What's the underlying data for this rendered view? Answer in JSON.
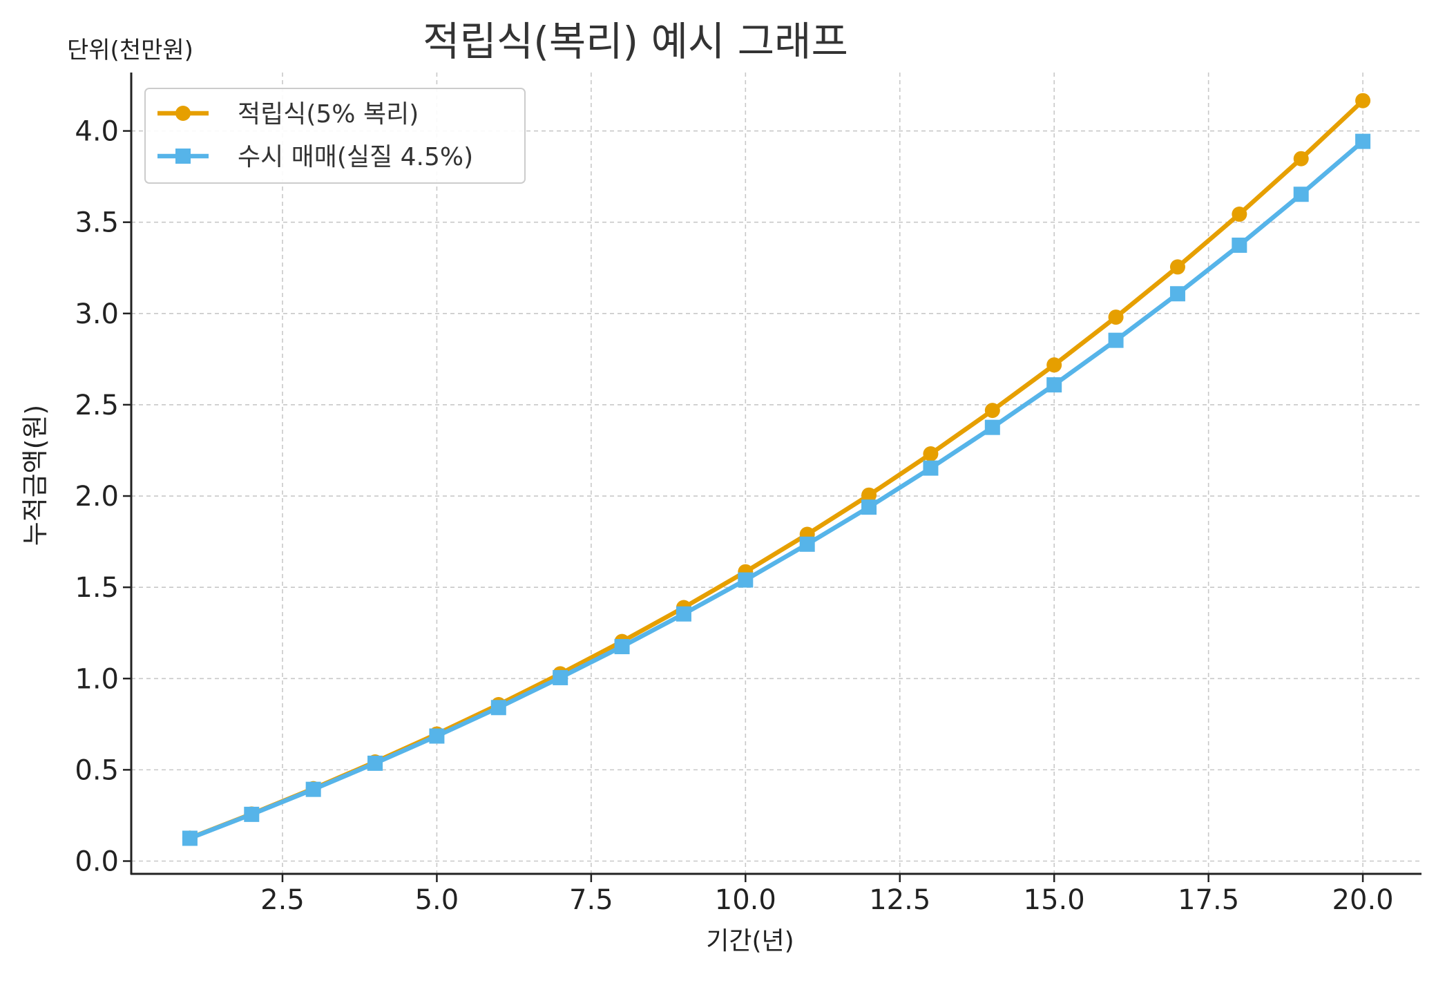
{
  "chart_data": {
    "type": "line",
    "title": "적립식(복리) 예시 그래프",
    "unit_note": "단위(천만원)",
    "xlabel": "기간(년)",
    "ylabel": "누적금액(원)",
    "x": [
      1,
      2,
      3,
      4,
      5,
      6,
      7,
      8,
      9,
      10,
      11,
      12,
      13,
      14,
      15,
      16,
      17,
      18,
      19,
      20
    ],
    "xlim": [
      0.05,
      20.95
    ],
    "ylim": [
      -0.07,
      4.32
    ],
    "xticks": [
      2.5,
      5.0,
      7.5,
      10.0,
      12.5,
      15.0,
      17.5,
      20.0
    ],
    "xtick_labels": [
      "2.5",
      "5.0",
      "7.5",
      "10.0",
      "12.5",
      "15.0",
      "17.5",
      "20.0"
    ],
    "yticks": [
      0.0,
      0.5,
      1.0,
      1.5,
      2.0,
      2.5,
      3.0,
      3.5,
      4.0
    ],
    "ytick_labels": [
      "0.0",
      "0.5",
      "1.0",
      "1.5",
      "2.0",
      "2.5",
      "3.0",
      "3.5",
      "4.0"
    ],
    "grid": true,
    "legend_position": "top-left",
    "series": [
      {
        "name": "적립식(5% 복리)",
        "marker": "circle",
        "color": "#E69F00",
        "values": [
          0.126,
          0.258,
          0.397,
          0.543,
          0.696,
          0.857,
          1.026,
          1.203,
          1.389,
          1.585,
          1.79,
          2.005,
          2.231,
          2.469,
          2.718,
          2.98,
          3.255,
          3.544,
          3.848,
          4.166
        ]
      },
      {
        "name": "수시 매매(실질 4.5%)",
        "marker": "square",
        "color": "#56B4E9",
        "values": [
          0.125,
          0.256,
          0.393,
          0.536,
          0.685,
          0.841,
          1.005,
          1.175,
          1.354,
          1.54,
          1.736,
          1.939,
          2.153,
          2.376,
          2.609,
          2.853,
          3.108,
          3.374,
          3.653,
          3.943
        ]
      }
    ]
  }
}
